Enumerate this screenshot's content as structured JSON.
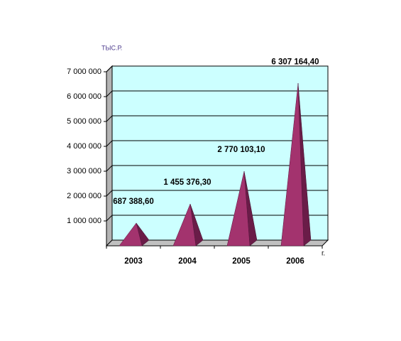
{
  "chart_data": {
    "type": "pyramid",
    "y_label": "ТЫС.Р.",
    "x_label": "г.",
    "categories": [
      "2003",
      "2004",
      "2005",
      "2006"
    ],
    "values": [
      687388.6,
      1455376.3,
      2770103.1,
      6307164.4
    ],
    "value_labels": [
      "687 388,60",
      "1 455 376,30",
      "2 770 103,10",
      "6 307 164,40"
    ],
    "color": "#a3336e",
    "side_color": "#6a1c48",
    "wall_color": "#ccffff",
    "ylim": [
      0,
      7000000
    ],
    "yticks": [
      {
        "value": 1000000,
        "label": "1 000 000"
      },
      {
        "value": 2000000,
        "label": "2 000 000"
      },
      {
        "value": 3000000,
        "label": "3 000 000"
      },
      {
        "value": 4000000,
        "label": "4 000 000"
      },
      {
        "value": 5000000,
        "label": "5 000 000"
      },
      {
        "value": 6000000,
        "label": "6 000 000"
      },
      {
        "value": 7000000,
        "label": "7 000 000"
      }
    ],
    "grid": true
  }
}
